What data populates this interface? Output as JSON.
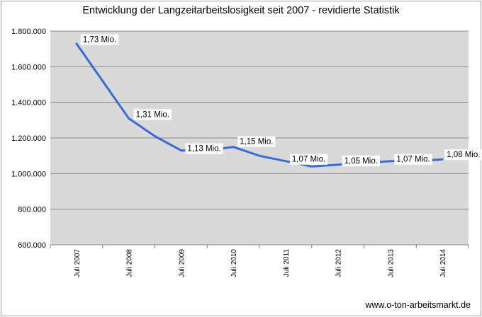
{
  "chart_data": {
    "type": "line",
    "title": "Entwicklung der Langzeitarbeitslosigkeit seit 2007 - revidierte Statistik",
    "source": "www.o-ton-arbeitsmarkt.de",
    "categories": [
      "Juli 2007",
      "Juli 2008",
      "Juli 2009",
      "Juli 2010",
      "Juli 2011",
      "Juli 2012",
      "Juli 2013",
      "Juli 2014"
    ],
    "y_tick_labels": [
      "600.000",
      "800.000",
      "1.000.000",
      "1.200.000",
      "1.400.000",
      "1.600.000",
      "1.800.000"
    ],
    "ylim": [
      600000,
      1800000
    ],
    "grid": true,
    "series": [
      {
        "x": [
          0,
          0.5,
          1,
          1.5,
          2,
          2.5,
          3,
          3.5,
          4,
          4.5,
          5,
          5.5,
          6,
          6.5,
          7
        ],
        "values": [
          1730000,
          1520000,
          1310000,
          1210000,
          1130000,
          1130000,
          1150000,
          1100000,
          1070000,
          1040000,
          1050000,
          1060000,
          1070000,
          1070000,
          1080000
        ],
        "labels": [
          "1,73 Mio.",
          "1,31 Mio.",
          "1,13 Mio.",
          "1,15 Mio.",
          "1,07 Mio.",
          "1,05 Mio.",
          "1,07 Mio.",
          "1,08 Mio."
        ],
        "color": "#3a6ad4"
      }
    ],
    "plot_background": "#d9d9d9",
    "gridline_color": "#8c8c8c"
  }
}
